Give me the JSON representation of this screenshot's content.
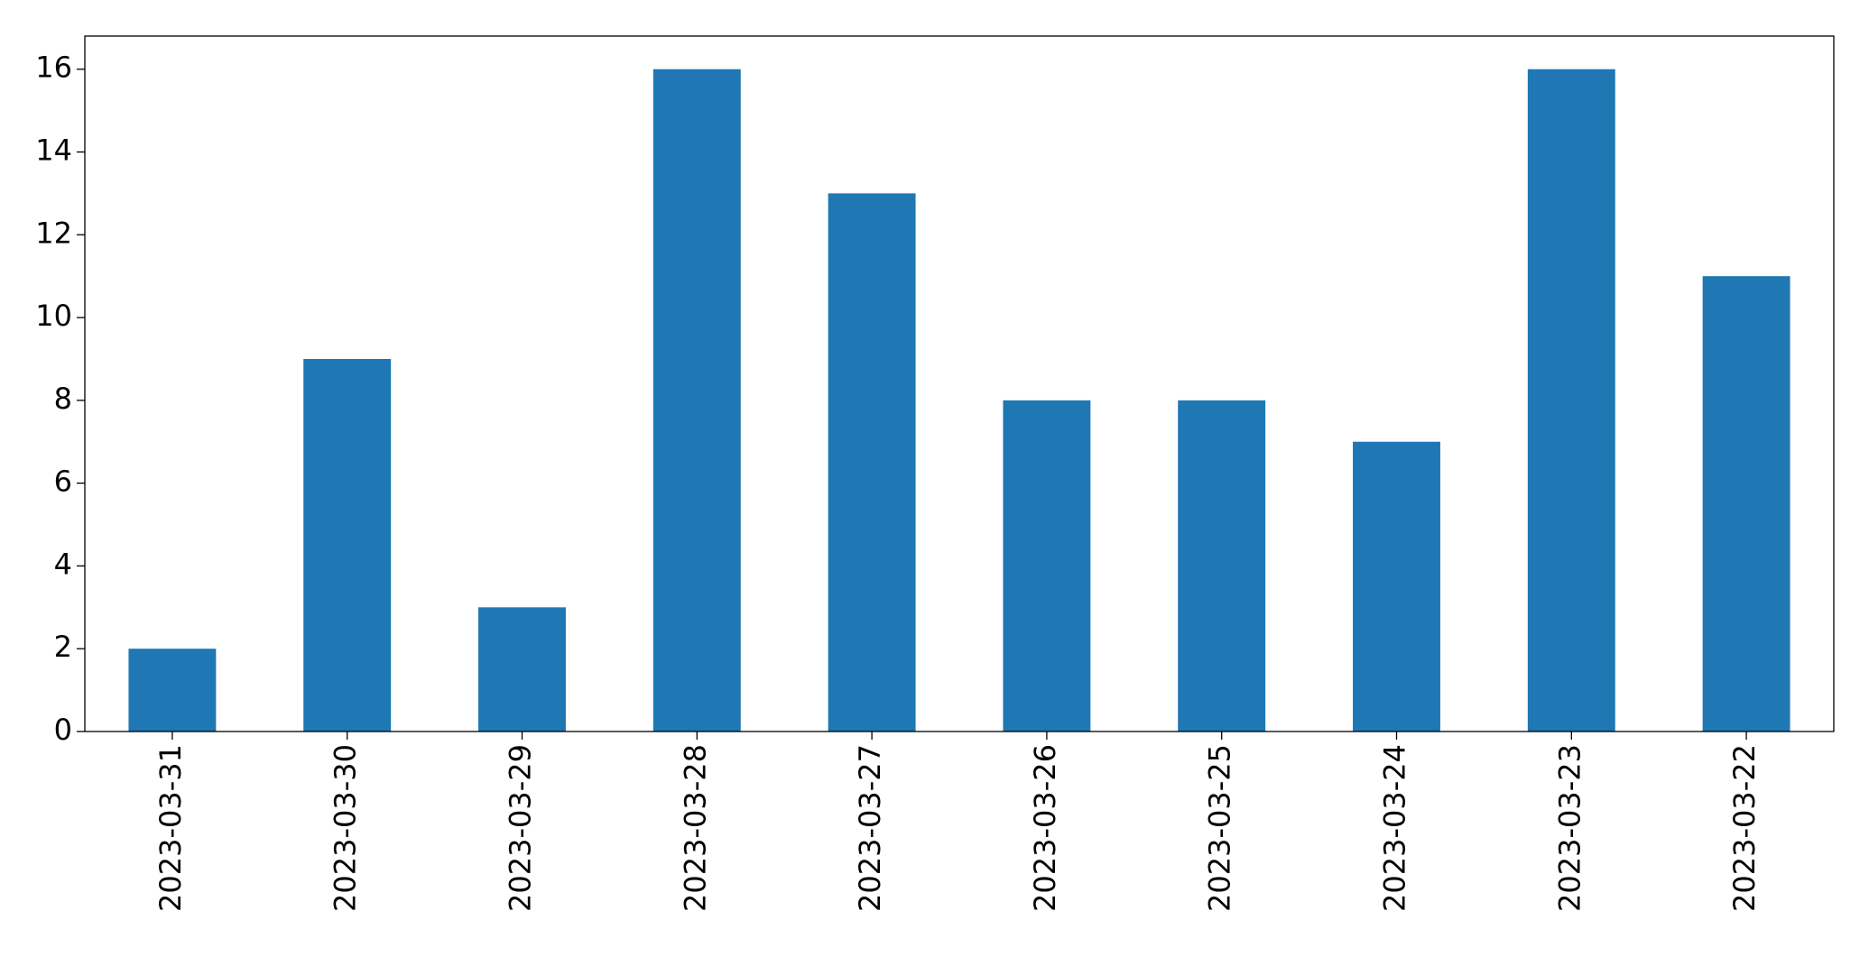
{
  "chart_data": {
    "type": "bar",
    "categories": [
      "2023-03-31",
      "2023-03-30",
      "2023-03-29",
      "2023-03-28",
      "2023-03-27",
      "2023-03-26",
      "2023-03-25",
      "2023-03-24",
      "2023-03-23",
      "2023-03-22"
    ],
    "values": [
      2,
      9,
      3,
      16,
      13,
      8,
      8,
      7,
      16,
      11
    ],
    "color": "#1f77b4",
    "ylim": [
      0,
      16.8
    ],
    "yticks": [
      0,
      2,
      4,
      6,
      8,
      10,
      12,
      14,
      16
    ],
    "grid": false
  }
}
